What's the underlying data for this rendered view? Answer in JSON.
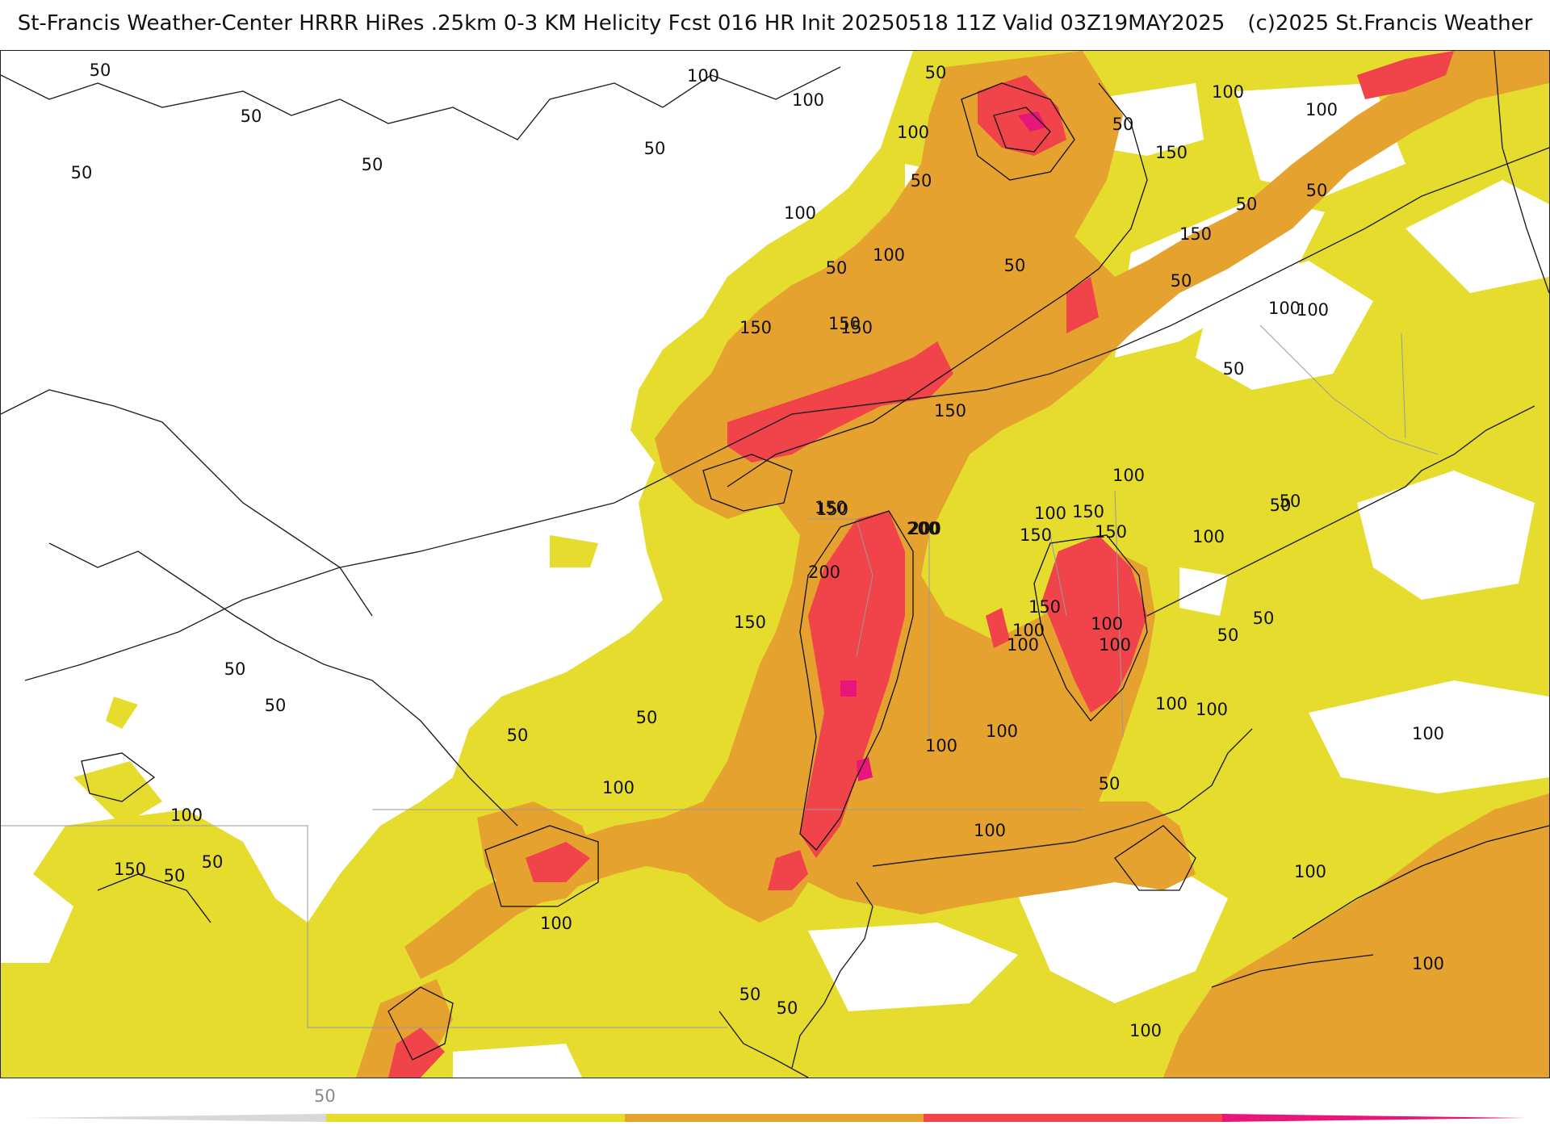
{
  "header": {
    "title": "St-Francis Weather-Center HRRR HiRes .25km 0-3 KM Helicity Fcst 016 HR Init 20250518 11Z  Valid 03Z19MAY2025",
    "copyright": "(c)2025 St.Francis Weather"
  },
  "map": {
    "field": "0-3 KM Helicity",
    "colors": {
      "band_50": "#e5dc2e",
      "band_100": "#e6a22e",
      "band_150": "#f0434a",
      "band_200": "#e8157a",
      "contour": "#111111",
      "borders": "#9a9a9a"
    },
    "contour_labels": [
      {
        "text": "50"
      },
      {
        "text": "50"
      },
      {
        "text": "50"
      },
      {
        "text": "50"
      },
      {
        "text": "50"
      },
      {
        "text": "100"
      },
      {
        "text": "100"
      },
      {
        "text": "50"
      },
      {
        "text": "50"
      },
      {
        "text": "50"
      },
      {
        "text": "100"
      },
      {
        "text": "100"
      },
      {
        "text": "50"
      },
      {
        "text": "150"
      },
      {
        "text": "100"
      },
      {
        "text": "100"
      },
      {
        "text": "150"
      },
      {
        "text": "100"
      },
      {
        "text": "50"
      },
      {
        "text": "150"
      },
      {
        "text": "50"
      },
      {
        "text": "50"
      },
      {
        "text": "100"
      },
      {
        "text": "150"
      },
      {
        "text": "150"
      },
      {
        "text": "150"
      },
      {
        "text": "200"
      },
      {
        "text": "150"
      },
      {
        "text": "200"
      },
      {
        "text": "150"
      },
      {
        "text": "150"
      },
      {
        "text": "100"
      },
      {
        "text": "100"
      },
      {
        "text": "150"
      },
      {
        "text": "50"
      },
      {
        "text": "100"
      },
      {
        "text": "50"
      },
      {
        "text": "50"
      },
      {
        "text": "50"
      },
      {
        "text": "50"
      },
      {
        "text": "50"
      },
      {
        "text": "100"
      },
      {
        "text": "100"
      },
      {
        "text": "200"
      },
      {
        "text": "100"
      },
      {
        "text": "150"
      },
      {
        "text": "200"
      },
      {
        "text": "100"
      },
      {
        "text": "100"
      },
      {
        "text": "150"
      },
      {
        "text": "100"
      },
      {
        "text": "100"
      },
      {
        "text": "100"
      },
      {
        "text": "100"
      },
      {
        "text": "50"
      },
      {
        "text": "100"
      },
      {
        "text": "50"
      },
      {
        "text": "150"
      },
      {
        "text": "50"
      },
      {
        "text": "100"
      },
      {
        "text": "50"
      },
      {
        "text": "50"
      },
      {
        "text": "50"
      },
      {
        "text": "150"
      },
      {
        "text": "100"
      },
      {
        "text": "50"
      },
      {
        "text": "100"
      },
      {
        "text": "50"
      },
      {
        "text": "50"
      },
      {
        "text": "100"
      },
      {
        "text": "100"
      },
      {
        "text": "100"
      },
      {
        "text": "100"
      }
    ]
  },
  "legend": {
    "tick_labels": [
      "50"
    ],
    "bands": [
      {
        "value": 50,
        "color": "#e5dc2e"
      },
      {
        "value": 100,
        "color": "#e6a22e"
      },
      {
        "value": 150,
        "color": "#f0434a"
      },
      {
        "value": 200,
        "color": "#e8157a"
      }
    ]
  }
}
